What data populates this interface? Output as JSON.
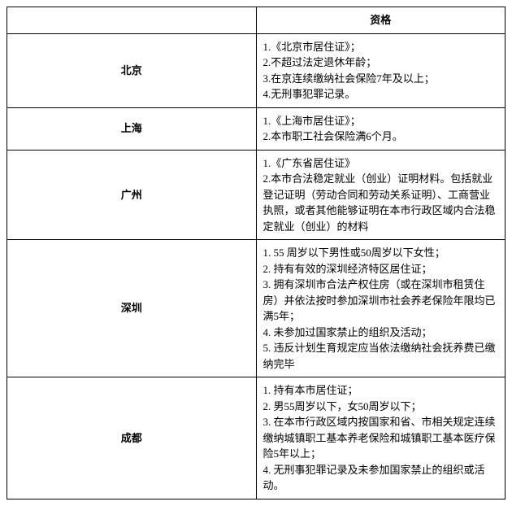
{
  "header": {
    "col1": "",
    "col2": "资格"
  },
  "rows": [
    {
      "city": "北京",
      "items": [
        "1.《北京市居住证》；",
        "2.不超过法定退休年龄；",
        "3.在京连续缴纳社会保险7年及以上；",
        "4.无刑事犯罪记录。"
      ]
    },
    {
      "city": "上海",
      "items": [
        "1.《上海市居住证》；",
        "2.本市职工社会保险满6个月。"
      ]
    },
    {
      "city": "广州",
      "items": [
        "1.《广东省居住证》",
        "2.本市合法稳定就业（创业）证明材料。包括就业登记证明（劳动合同和劳动关系证明）、工商营业执照，或者其他能够证明在本市行政区域内合法稳定就业（创业）的材料"
      ]
    },
    {
      "city": "深圳",
      "items": [
        "1. 55 周岁以下男性或50周岁以下女性；",
        "2. 持有有效的深圳经济特区居住证；",
        "3. 拥有深圳市合法产权住房（或在深圳市租赁住房）并依法按时参加深圳市社会养老保险年限均已满5年；",
        "4. 未参加过国家禁止的组织及活动；",
        "5. 违反计划生育规定应当依法缴纳社会抚养费已缴纳完毕"
      ]
    },
    {
      "city": "成都",
      "items": [
        "1. 持有本市居住证；",
        "2. 男55周岁以下，女50周岁以下；",
        "3. 在本市行政区域内按国家和省、市相关规定连续缴纳城镇职工基本养老保险和城镇职工基本医疗保险5年以上；",
        "4. 无刑事犯罪记录及未参加国家禁止的组织或活动。"
      ]
    }
  ]
}
